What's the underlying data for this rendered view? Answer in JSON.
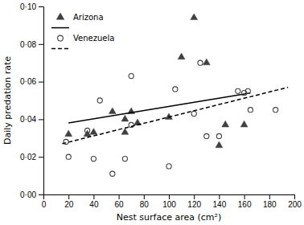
{
  "chart_data": {
    "type": "scatter",
    "xlabel": "Nest surface area (cm²)",
    "ylabel": "Daily predation rate",
    "xlim": [
      0,
      200
    ],
    "ylim": [
      0.0,
      0.1
    ],
    "xticks": [
      0,
      20,
      40,
      60,
      80,
      100,
      120,
      140,
      160,
      180,
      200
    ],
    "yticks": [
      {
        "value": 0.0,
        "label": "0·00"
      },
      {
        "value": 0.02,
        "label": "0·02"
      },
      {
        "value": 0.04,
        "label": "0·04"
      },
      {
        "value": 0.06,
        "label": "0·06"
      },
      {
        "value": 0.08,
        "label": "0·08"
      },
      {
        "value": 0.1,
        "label": "0·10"
      }
    ],
    "grid": false,
    "legend": "upper-left",
    "series": [
      {
        "name": "Arizona",
        "type": "scatter",
        "marker": "triangle",
        "color": "#404040",
        "x": [
          20,
          35,
          40,
          55,
          65,
          65,
          70,
          75,
          100,
          110,
          120,
          130,
          140,
          145,
          160
        ],
        "values": [
          0.032,
          0.032,
          0.033,
          0.044,
          0.04,
          0.033,
          0.044,
          0.038,
          0.041,
          0.073,
          0.094,
          0.07,
          0.026,
          0.037,
          0.037
        ]
      },
      {
        "type": "line",
        "line_style": "solid",
        "color": "#000000",
        "x": [
          20,
          165
        ],
        "values": [
          0.038,
          0.054
        ]
      },
      {
        "name": "Venezuela",
        "type": "scatter",
        "marker": "open-circle",
        "color": "#404040",
        "x": [
          18,
          20,
          35,
          40,
          45,
          55,
          65,
          70,
          70,
          100,
          105,
          120,
          125,
          130,
          140,
          155,
          160,
          163,
          165,
          185
        ],
        "values": [
          0.028,
          0.02,
          0.034,
          0.019,
          0.05,
          0.011,
          0.019,
          0.063,
          0.037,
          0.015,
          0.056,
          0.043,
          0.07,
          0.031,
          0.031,
          0.055,
          0.054,
          0.055,
          0.045,
          0.045
        ]
      },
      {
        "type": "line",
        "line_style": "dashed",
        "color": "#000000",
        "x": [
          15,
          195
        ],
        "values": [
          0.027,
          0.057
        ]
      }
    ]
  }
}
